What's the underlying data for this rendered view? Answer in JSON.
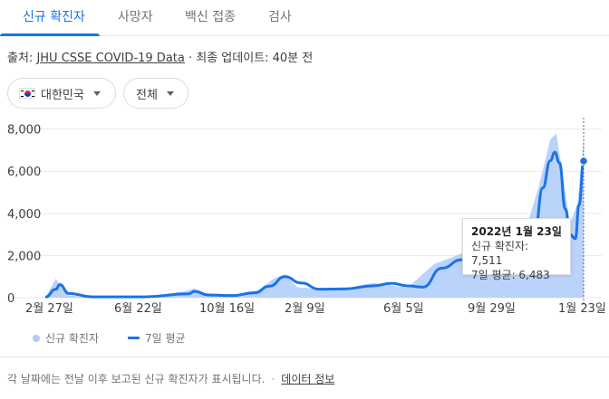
{
  "tabs": [
    {
      "label": "신규 확진자",
      "active": true
    },
    {
      "label": "사망자",
      "active": false
    },
    {
      "label": "백신 접종",
      "active": false
    },
    {
      "label": "검사",
      "active": false
    }
  ],
  "source": {
    "prefix": "출처: ",
    "link": "JHU CSSE COVID-19 Data",
    "suffix": " · 최종 업데이트: 40분 전"
  },
  "filters": {
    "region": {
      "label": "대한민국",
      "icon": "korea-flag-icon"
    },
    "range": {
      "label": "전체"
    }
  },
  "tooltip": {
    "date": "2022년 1월 23일",
    "new_cases": "신규 확진자: 7,511",
    "avg": "7일 평균: 6,483"
  },
  "legend": {
    "bar_label": "신규 확진자",
    "line_label": "7일 평균"
  },
  "footer": {
    "note": "각 날짜에는 전날 이후 보고된 신규 확진자가 표시됩니다.",
    "link": "데이터 정보"
  },
  "colors": {
    "accent": "#1a73e8",
    "bars": "#aecbfa"
  },
  "chart_data": {
    "type": "area",
    "y_ticks": [
      "8,000",
      "6,000",
      "4,000",
      "2,000",
      "0"
    ],
    "y_tick_values": [
      8000,
      6000,
      4000,
      2000,
      0
    ],
    "ylim": [
      0,
      8200
    ],
    "x_ticks": [
      "2월 27일",
      "6월 22일",
      "10월 16일",
      "2월 9일",
      "6월 5일",
      "9월 29일",
      "1월 23일"
    ],
    "grid": true,
    "series": [
      {
        "name": "신규 확진자",
        "kind": "bar",
        "x": [
          "2020-02-13",
          "2020-02-27",
          "2020-03-05",
          "2020-03-15",
          "2020-04-01",
          "2020-05-01",
          "2020-06-22",
          "2020-08-15",
          "2020-08-27",
          "2020-09-10",
          "2020-10-16",
          "2020-11-20",
          "2020-12-10",
          "2020-12-25",
          "2021-01-10",
          "2021-02-09",
          "2021-03-15",
          "2021-04-20",
          "2021-05-15",
          "2021-06-05",
          "2021-07-10",
          "2021-07-25",
          "2021-08-15",
          "2021-09-05",
          "2021-09-25",
          "2021-10-05",
          "2021-10-25",
          "2021-11-10",
          "2021-11-25",
          "2021-12-10",
          "2021-12-18",
          "2021-12-28",
          "2022-01-05",
          "2022-01-15",
          "2022-01-23"
        ],
        "values": [
          0,
          900,
          500,
          100,
          50,
          20,
          50,
          300,
          440,
          140,
          120,
          360,
          900,
          1100,
          500,
          400,
          450,
          700,
          580,
          480,
          1600,
          1800,
          2100,
          2300,
          2600,
          1600,
          1900,
          3500,
          5300,
          7500,
          7800,
          5500,
          3500,
          4500,
          7511
        ]
      },
      {
        "name": "7일 평균",
        "kind": "line",
        "x": [
          "2020-02-13",
          "2020-02-27",
          "2020-03-03",
          "2020-03-15",
          "2020-04-15",
          "2020-06-22",
          "2020-08-20",
          "2020-08-28",
          "2020-09-15",
          "2020-10-16",
          "2020-11-15",
          "2020-12-05",
          "2020-12-25",
          "2021-01-15",
          "2021-02-09",
          "2021-03-15",
          "2021-04-20",
          "2021-05-15",
          "2021-06-05",
          "2021-06-25",
          "2021-07-20",
          "2021-08-15",
          "2021-09-10",
          "2021-09-29",
          "2021-10-15",
          "2021-10-30",
          "2021-11-10",
          "2021-11-20",
          "2021-11-30",
          "2021-12-10",
          "2021-12-16",
          "2021-12-22",
          "2021-12-30",
          "2022-01-05",
          "2022-01-12",
          "2022-01-17",
          "2022-01-23"
        ],
        "values": [
          30,
          400,
          620,
          200,
          40,
          40,
          180,
          300,
          130,
          100,
          230,
          550,
          1000,
          700,
          400,
          420,
          560,
          680,
          560,
          500,
          1400,
          1800,
          1700,
          1800,
          2100,
          1700,
          2200,
          3300,
          5200,
          6500,
          6900,
          6400,
          4200,
          3000,
          2800,
          4400,
          6483
        ]
      }
    ]
  }
}
